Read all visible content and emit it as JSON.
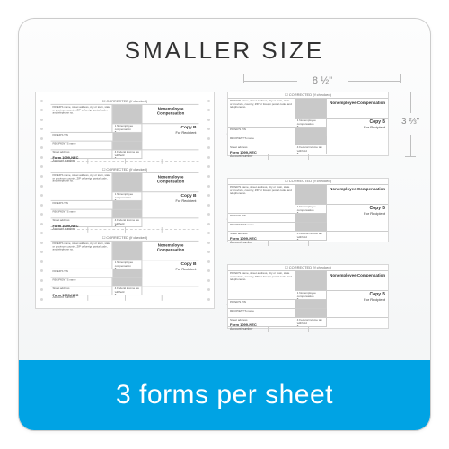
{
  "title": "SMALLER SIZE",
  "dimensions": {
    "width": "8 ½\"",
    "height": "3 ⅔\""
  },
  "form": {
    "header": "CORRECTED (if checked)",
    "payer_label": "PAYER'S name, street address, city or town, state or province, country, ZIP or foreign postal code, and telephone no.",
    "main_title": "Nonemployee Compensation",
    "copy_label": "Copy B",
    "copy_sub": "For Recipient",
    "form_number": "Form 1099-NEC",
    "box1": "1 Nonemployee compensation",
    "box4": "4 Federal income tax withheld",
    "tin_p": "PAYER'S TIN",
    "tin_r": "RECIPIENT'S TIN",
    "recipient": "RECIPIENT'S name",
    "street": "Street address",
    "acct": "Account number"
  },
  "banner": "3 forms per sheet",
  "colors": {
    "banner_bg": "#00a3e4",
    "border": "#cccccc",
    "shaded": "#c9c9c9"
  }
}
